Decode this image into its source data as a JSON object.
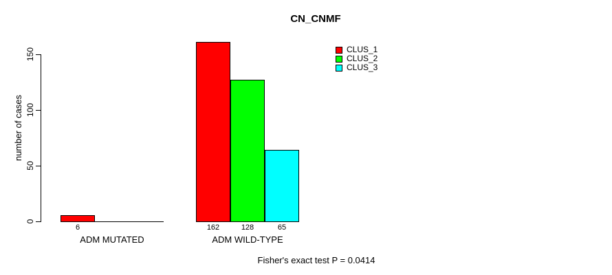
{
  "chart_data": {
    "type": "bar",
    "title": "CN_CNMF",
    "xlabel": "",
    "ylabel": "number of cases",
    "categories": [
      "ADM MUTATED",
      "ADM WILD-TYPE"
    ],
    "series": [
      {
        "name": "CLUS_1",
        "color": "#ff0000",
        "values": [
          6,
          162
        ]
      },
      {
        "name": "CLUS_2",
        "color": "#00ff00",
        "values": [
          0,
          128
        ]
      },
      {
        "name": "CLUS_3",
        "color": "#00ffff",
        "values": [
          0,
          65
        ]
      }
    ],
    "yticks": [
      0,
      50,
      100,
      150
    ],
    "ylim": [
      0,
      162
    ],
    "grid": false,
    "bar_value_labels_shown": [
      6,
      162,
      128,
      65
    ],
    "legend": {
      "position": "top-right",
      "entries": [
        {
          "label": "CLUS_1",
          "color": "#ff0000"
        },
        {
          "label": "CLUS_2",
          "color": "#00ff00"
        },
        {
          "label": "CLUS_3",
          "color": "#00ffff"
        }
      ]
    },
    "annotation": "Fisher's exact test P = 0.0414"
  }
}
